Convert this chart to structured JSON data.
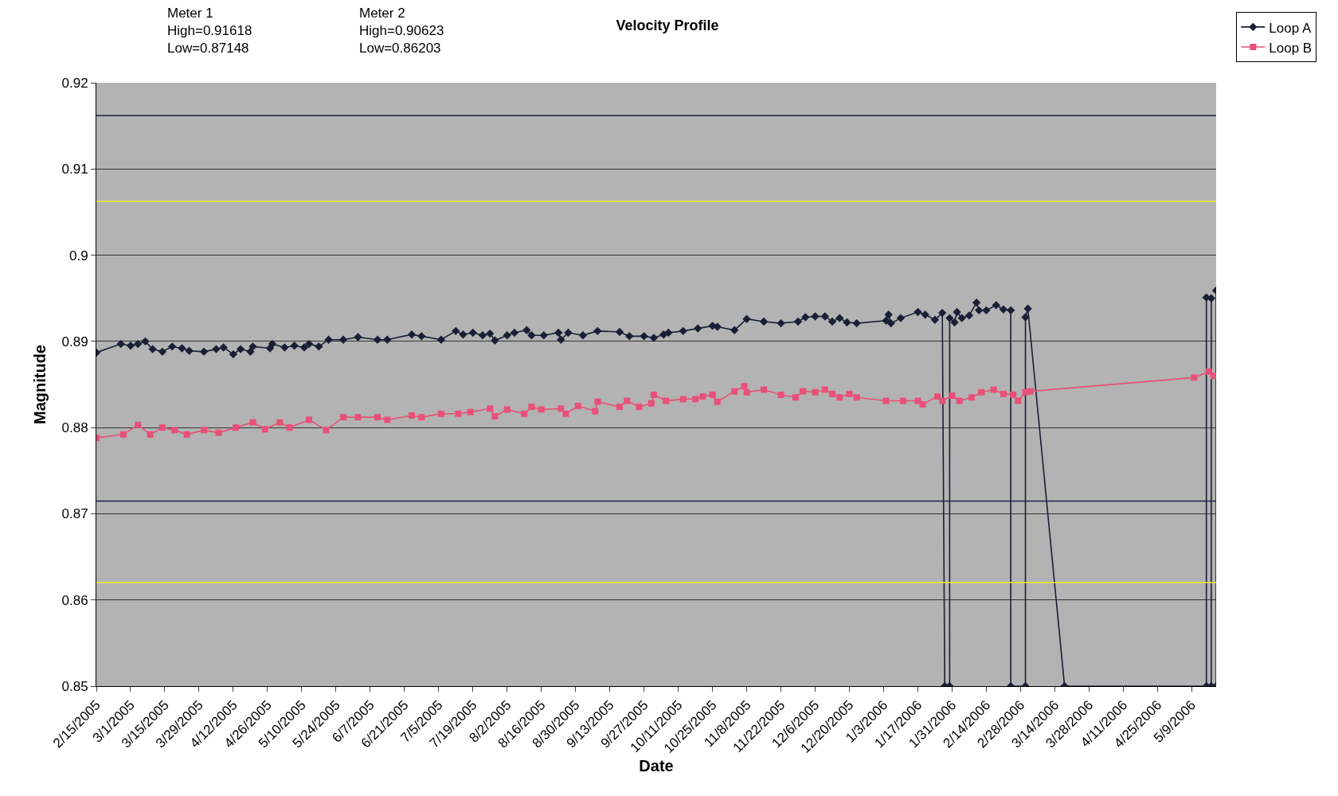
{
  "chart_data": {
    "type": "line",
    "title": "Velocity Profile",
    "xlabel": "Date",
    "ylabel": "Magnitude",
    "annotations": [
      "Meter 1\nHigh=0.91618\nLow=0.87148",
      "Meter 2\nHigh=0.90623\nLow=0.86203"
    ],
    "xlim": [
      "2005-02-15",
      "2006-05-19"
    ],
    "xticks": [
      {
        "value": "2005-02-15",
        "label": "2/15/2005"
      },
      {
        "value": "2005-03-01",
        "label": "3/1/2005"
      },
      {
        "value": "2005-03-15",
        "label": "3/15/2005"
      },
      {
        "value": "2005-03-29",
        "label": "3/29/2005"
      },
      {
        "value": "2005-04-12",
        "label": "4/12/2005"
      },
      {
        "value": "2005-04-26",
        "label": "4/26/2005"
      },
      {
        "value": "2005-05-10",
        "label": "5/10/2005"
      },
      {
        "value": "2005-05-24",
        "label": "5/24/2005"
      },
      {
        "value": "2005-06-07",
        "label": "6/7/2005"
      },
      {
        "value": "2005-06-21",
        "label": "6/21/2005"
      },
      {
        "value": "2005-07-05",
        "label": "7/5/2005"
      },
      {
        "value": "2005-07-19",
        "label": "7/19/2005"
      },
      {
        "value": "2005-08-02",
        "label": "8/2/2005"
      },
      {
        "value": "2005-08-16",
        "label": "8/16/2005"
      },
      {
        "value": "2005-08-30",
        "label": "8/30/2005"
      },
      {
        "value": "2005-09-13",
        "label": "9/13/2005"
      },
      {
        "value": "2005-09-27",
        "label": "9/27/2005"
      },
      {
        "value": "2005-10-11",
        "label": "10/11/2005"
      },
      {
        "value": "2005-10-25",
        "label": "10/25/2005"
      },
      {
        "value": "2005-11-08",
        "label": "11/8/2005"
      },
      {
        "value": "2005-11-22",
        "label": "11/22/2005"
      },
      {
        "value": "2005-12-06",
        "label": "12/6/2005"
      },
      {
        "value": "2005-12-20",
        "label": "12/20/2005"
      },
      {
        "value": "2006-01-03",
        "label": "1/3/2006"
      },
      {
        "value": "2006-01-17",
        "label": "1/17/2006"
      },
      {
        "value": "2006-01-31",
        "label": "1/31/2006"
      },
      {
        "value": "2006-02-14",
        "label": "2/14/2006"
      },
      {
        "value": "2006-02-28",
        "label": "2/28/2006"
      },
      {
        "value": "2006-03-14",
        "label": "3/14/2006"
      },
      {
        "value": "2006-03-28",
        "label": "3/28/2006"
      },
      {
        "value": "2006-04-11",
        "label": "4/11/2006"
      },
      {
        "value": "2006-04-25",
        "label": "4/25/2006"
      },
      {
        "value": "2006-05-09",
        "label": "5/9/2006"
      }
    ],
    "ylim": [
      0.85,
      0.92
    ],
    "yticks": [
      0.85,
      0.86,
      0.87,
      0.88,
      0.89,
      0.9,
      0.91,
      0.92
    ],
    "grid": "y",
    "legend": "top right",
    "ref_lines": [
      {
        "axis": "y",
        "value": 0.91618,
        "color": "#1c2340"
      },
      {
        "axis": "y",
        "value": 0.87148,
        "color": "#1c2340"
      },
      {
        "axis": "y",
        "value": 0.90623,
        "color": "#f2ee2a"
      },
      {
        "axis": "y",
        "value": 0.86203,
        "color": "#f2ee2a"
      }
    ],
    "series": [
      {
        "name": "Loop A",
        "color": "#1a1f36",
        "marker": "diamond",
        "x": [
          "2005-02-15",
          "2005-02-25",
          "2005-03-01",
          "2005-03-04",
          "2005-03-07",
          "2005-03-10",
          "2005-03-14",
          "2005-03-18",
          "2005-03-22",
          "2005-03-25",
          "2005-03-31",
          "2005-04-05",
          "2005-04-08",
          "2005-04-12",
          "2005-04-15",
          "2005-04-19",
          "2005-04-20",
          "2005-04-27",
          "2005-04-28",
          "2005-05-03",
          "2005-05-07",
          "2005-05-11",
          "2005-05-13",
          "2005-05-17",
          "2005-05-21",
          "2005-05-27",
          "2005-06-02",
          "2005-06-10",
          "2005-06-14",
          "2005-06-24",
          "2005-06-28",
          "2005-07-06",
          "2005-07-12",
          "2005-07-15",
          "2005-07-19",
          "2005-07-23",
          "2005-07-26",
          "2005-07-28",
          "2005-08-02",
          "2005-08-05",
          "2005-08-10",
          "2005-08-12",
          "2005-08-17",
          "2005-08-23",
          "2005-08-24",
          "2005-08-27",
          "2005-09-02",
          "2005-09-08",
          "2005-09-17",
          "2005-09-21",
          "2005-09-27",
          "2005-10-01",
          "2005-10-05",
          "2005-10-07",
          "2005-10-13",
          "2005-10-19",
          "2005-10-25",
          "2005-10-27",
          "2005-11-03",
          "2005-11-08",
          "2005-11-15",
          "2005-11-22",
          "2005-11-29",
          "2005-12-02",
          "2005-12-06",
          "2005-12-10",
          "2005-12-13",
          "2005-12-16",
          "2005-12-19",
          "2005-12-23",
          "2006-01-04",
          "2006-01-05",
          "2006-01-06",
          "2006-01-10",
          "2006-01-17",
          "2006-01-20",
          "2006-01-24",
          "2006-01-27",
          "2006-01-28",
          "2006-01-30",
          "2006-01-30",
          "2006-02-01",
          "2006-02-02",
          "2006-02-04",
          "2006-02-07",
          "2006-02-10",
          "2006-02-11",
          "2006-02-14",
          "2006-02-18",
          "2006-02-21",
          "2006-02-24",
          "2006-02-24",
          "2006-03-02",
          "2006-03-02",
          "2006-03-03",
          "2006-03-18",
          "2006-05-15",
          "2006-05-15",
          "2006-05-17",
          "2006-05-17",
          "2006-05-19",
          "2006-05-19"
        ],
        "values": [
          0.8887,
          0.8897,
          0.8895,
          0.8897,
          0.89,
          0.8891,
          0.8888,
          0.8894,
          0.8892,
          0.8889,
          0.8888,
          0.8891,
          0.8893,
          0.8885,
          0.8891,
          0.8888,
          0.8894,
          0.8892,
          0.8897,
          0.8893,
          0.8895,
          0.8893,
          0.8897,
          0.8894,
          0.8902,
          0.8902,
          0.8905,
          0.8902,
          0.8902,
          0.8908,
          0.8906,
          0.8902,
          0.8912,
          0.8908,
          0.891,
          0.8907,
          0.8909,
          0.8901,
          0.8907,
          0.891,
          0.8913,
          0.8907,
          0.8907,
          0.891,
          0.8902,
          0.891,
          0.8907,
          0.8912,
          0.8911,
          0.8906,
          0.8906,
          0.8904,
          0.8908,
          0.891,
          0.8912,
          0.8915,
          0.8918,
          0.8917,
          0.8913,
          0.8926,
          0.8923,
          0.8921,
          0.8923,
          0.8928,
          0.8929,
          0.8929,
          0.8923,
          0.8927,
          0.8922,
          0.8921,
          0.8924,
          0.8931,
          0.8921,
          0.8927,
          0.8934,
          0.8931,
          0.8925,
          0.8933,
          0.85,
          0.85,
          0.8927,
          0.8922,
          0.8934,
          0.8927,
          0.893,
          0.8945,
          0.8936,
          0.8936,
          0.8942,
          0.8937,
          0.8936,
          0.85,
          0.85,
          0.8928,
          0.8938,
          0.85,
          0.85,
          0.8951,
          0.895,
          0.85,
          0.85,
          0.8959
        ]
      },
      {
        "name": "Loop B",
        "color": "#e8507a",
        "marker": "square",
        "x": [
          "2005-02-15",
          "2005-02-26",
          "2005-03-04",
          "2005-03-09",
          "2005-03-14",
          "2005-03-19",
          "2005-03-24",
          "2005-03-31",
          "2005-04-06",
          "2005-04-13",
          "2005-04-20",
          "2005-04-25",
          "2005-05-01",
          "2005-05-05",
          "2005-05-13",
          "2005-05-20",
          "2005-05-27",
          "2005-06-02",
          "2005-06-10",
          "2005-06-14",
          "2005-06-24",
          "2005-06-28",
          "2005-07-06",
          "2005-07-13",
          "2005-07-18",
          "2005-07-26",
          "2005-07-28",
          "2005-08-02",
          "2005-08-09",
          "2005-08-12",
          "2005-08-16",
          "2005-08-24",
          "2005-08-26",
          "2005-08-31",
          "2005-09-07",
          "2005-09-08",
          "2005-09-17",
          "2005-09-20",
          "2005-09-25",
          "2005-09-30",
          "2005-10-01",
          "2005-10-06",
          "2005-10-13",
          "2005-10-18",
          "2005-10-21",
          "2005-10-25",
          "2005-10-27",
          "2005-11-03",
          "2005-11-07",
          "2005-11-08",
          "2005-11-15",
          "2005-11-22",
          "2005-11-28",
          "2005-12-01",
          "2005-12-06",
          "2005-12-10",
          "2005-12-13",
          "2005-12-16",
          "2005-12-20",
          "2005-12-23",
          "2006-01-04",
          "2006-01-11",
          "2006-01-17",
          "2006-01-19",
          "2006-01-25",
          "2006-01-27",
          "2006-01-31",
          "2006-02-03",
          "2006-02-08",
          "2006-02-12",
          "2006-02-17",
          "2006-02-21",
          "2006-02-25",
          "2006-02-27",
          "2006-03-02",
          "2006-03-04",
          "2006-05-10",
          "2006-05-16",
          "2006-05-18"
        ],
        "values": [
          0.8788,
          0.8792,
          0.8803,
          0.8792,
          0.88,
          0.8797,
          0.8792,
          0.8797,
          0.8794,
          0.88,
          0.8806,
          0.8798,
          0.8806,
          0.88,
          0.8809,
          0.8797,
          0.8812,
          0.8812,
          0.8812,
          0.8809,
          0.8814,
          0.8812,
          0.8816,
          0.8816,
          0.8818,
          0.8822,
          0.8813,
          0.8821,
          0.8816,
          0.8824,
          0.8821,
          0.8822,
          0.8816,
          0.8825,
          0.8819,
          0.883,
          0.8824,
          0.8831,
          0.8824,
          0.8828,
          0.8838,
          0.8831,
          0.8833,
          0.8833,
          0.8836,
          0.8838,
          0.883,
          0.8842,
          0.8848,
          0.8841,
          0.8844,
          0.8838,
          0.8835,
          0.8842,
          0.8841,
          0.8844,
          0.8839,
          0.8835,
          0.8839,
          0.8835,
          0.8831,
          0.8831,
          0.8831,
          0.8827,
          0.8836,
          0.8831,
          0.8837,
          0.8831,
          0.8835,
          0.8841,
          0.8844,
          0.8839,
          0.8838,
          0.8831,
          0.8841,
          0.8842,
          0.8858,
          0.8865,
          0.886
        ]
      }
    ]
  }
}
